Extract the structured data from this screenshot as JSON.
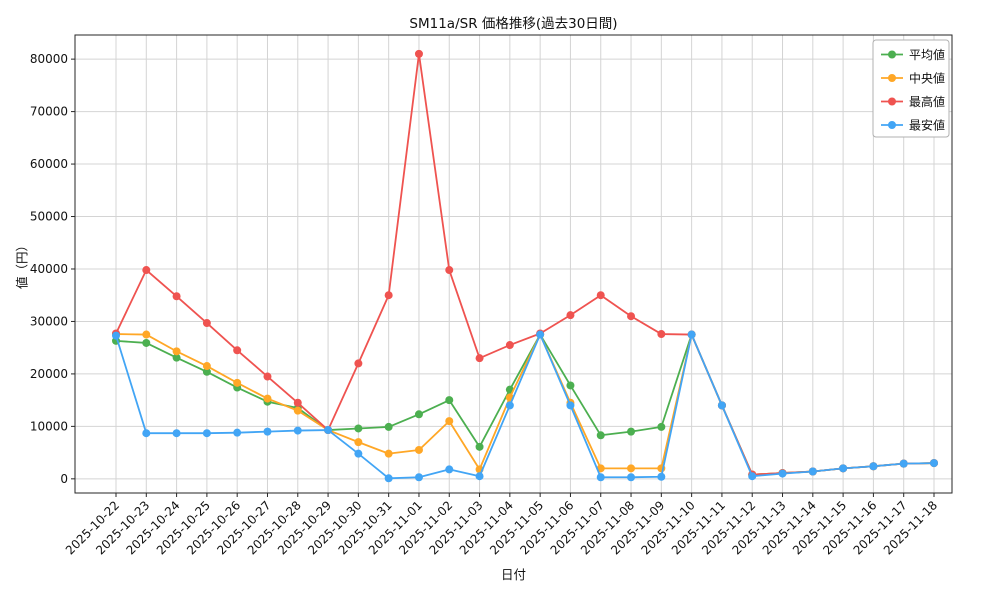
{
  "figure": {
    "title": "SM11a/SR 価格推移(過去30日間)",
    "ylabel": "値（円）",
    "xlabel": "日付"
  },
  "chart_data": {
    "type": "line",
    "title": "SM11a/SR 価格推移(過去30日間)",
    "xlabel": "日付",
    "ylabel": "値（円）",
    "x": [
      "2025-10-22",
      "2025-10-23",
      "2025-10-24",
      "2025-10-25",
      "2025-10-26",
      "2025-10-27",
      "2025-10-28",
      "2025-10-29",
      "2025-10-30",
      "2025-10-31",
      "2025-11-01",
      "2025-11-02",
      "2025-11-03",
      "2025-11-04",
      "2025-11-05",
      "2025-11-06",
      "2025-11-07",
      "2025-11-08",
      "2025-11-09",
      "2025-11-10",
      "2025-11-11",
      "2025-11-12",
      "2025-11-13",
      "2025-11-14",
      "2025-11-15",
      "2025-11-16",
      "2025-11-17",
      "2025-11-18"
    ],
    "series": [
      {
        "name": "平均値",
        "color": "#4caf50",
        "values": [
          26300,
          25900,
          23100,
          20400,
          17400,
          14700,
          13500,
          9300,
          9600,
          9900,
          12300,
          15000,
          6100,
          17000,
          27500,
          17800,
          8300,
          9000,
          9900,
          27500,
          14000,
          800,
          1100,
          1400,
          2000,
          2400,
          2900,
          3000
        ]
      },
      {
        "name": "中央値",
        "color": "#ffa726",
        "values": [
          27600,
          27500,
          24300,
          21500,
          18300,
          15300,
          13000,
          9300,
          7000,
          4800,
          5500,
          11000,
          1800,
          15500,
          27500,
          14500,
          2000,
          2000,
          2000,
          27500,
          14000,
          800,
          1100,
          1400,
          2000,
          2400,
          2900,
          3000
        ]
      },
      {
        "name": "最高値",
        "color": "#ef5350",
        "values": [
          27700,
          39800,
          34800,
          29700,
          24500,
          19500,
          14500,
          9300,
          22000,
          35000,
          81000,
          39800,
          23000,
          25500,
          27700,
          31200,
          35000,
          31000,
          27600,
          27500,
          14000,
          800,
          1100,
          1400,
          2000,
          2400,
          2900,
          3000
        ]
      },
      {
        "name": "最安値",
        "color": "#42a5f5",
        "values": [
          27300,
          8700,
          8700,
          8700,
          8800,
          9000,
          9200,
          9300,
          4800,
          100,
          300,
          1800,
          500,
          14000,
          27500,
          14000,
          300,
          300,
          400,
          27500,
          14000,
          500,
          1000,
          1400,
          2000,
          2400,
          2900,
          3000
        ]
      }
    ],
    "yticks": [
      0,
      10000,
      20000,
      30000,
      40000,
      50000,
      60000,
      70000,
      80000
    ],
    "ylim": [
      -2700,
      84600
    ],
    "grid": true,
    "legend_position": "upper right"
  }
}
